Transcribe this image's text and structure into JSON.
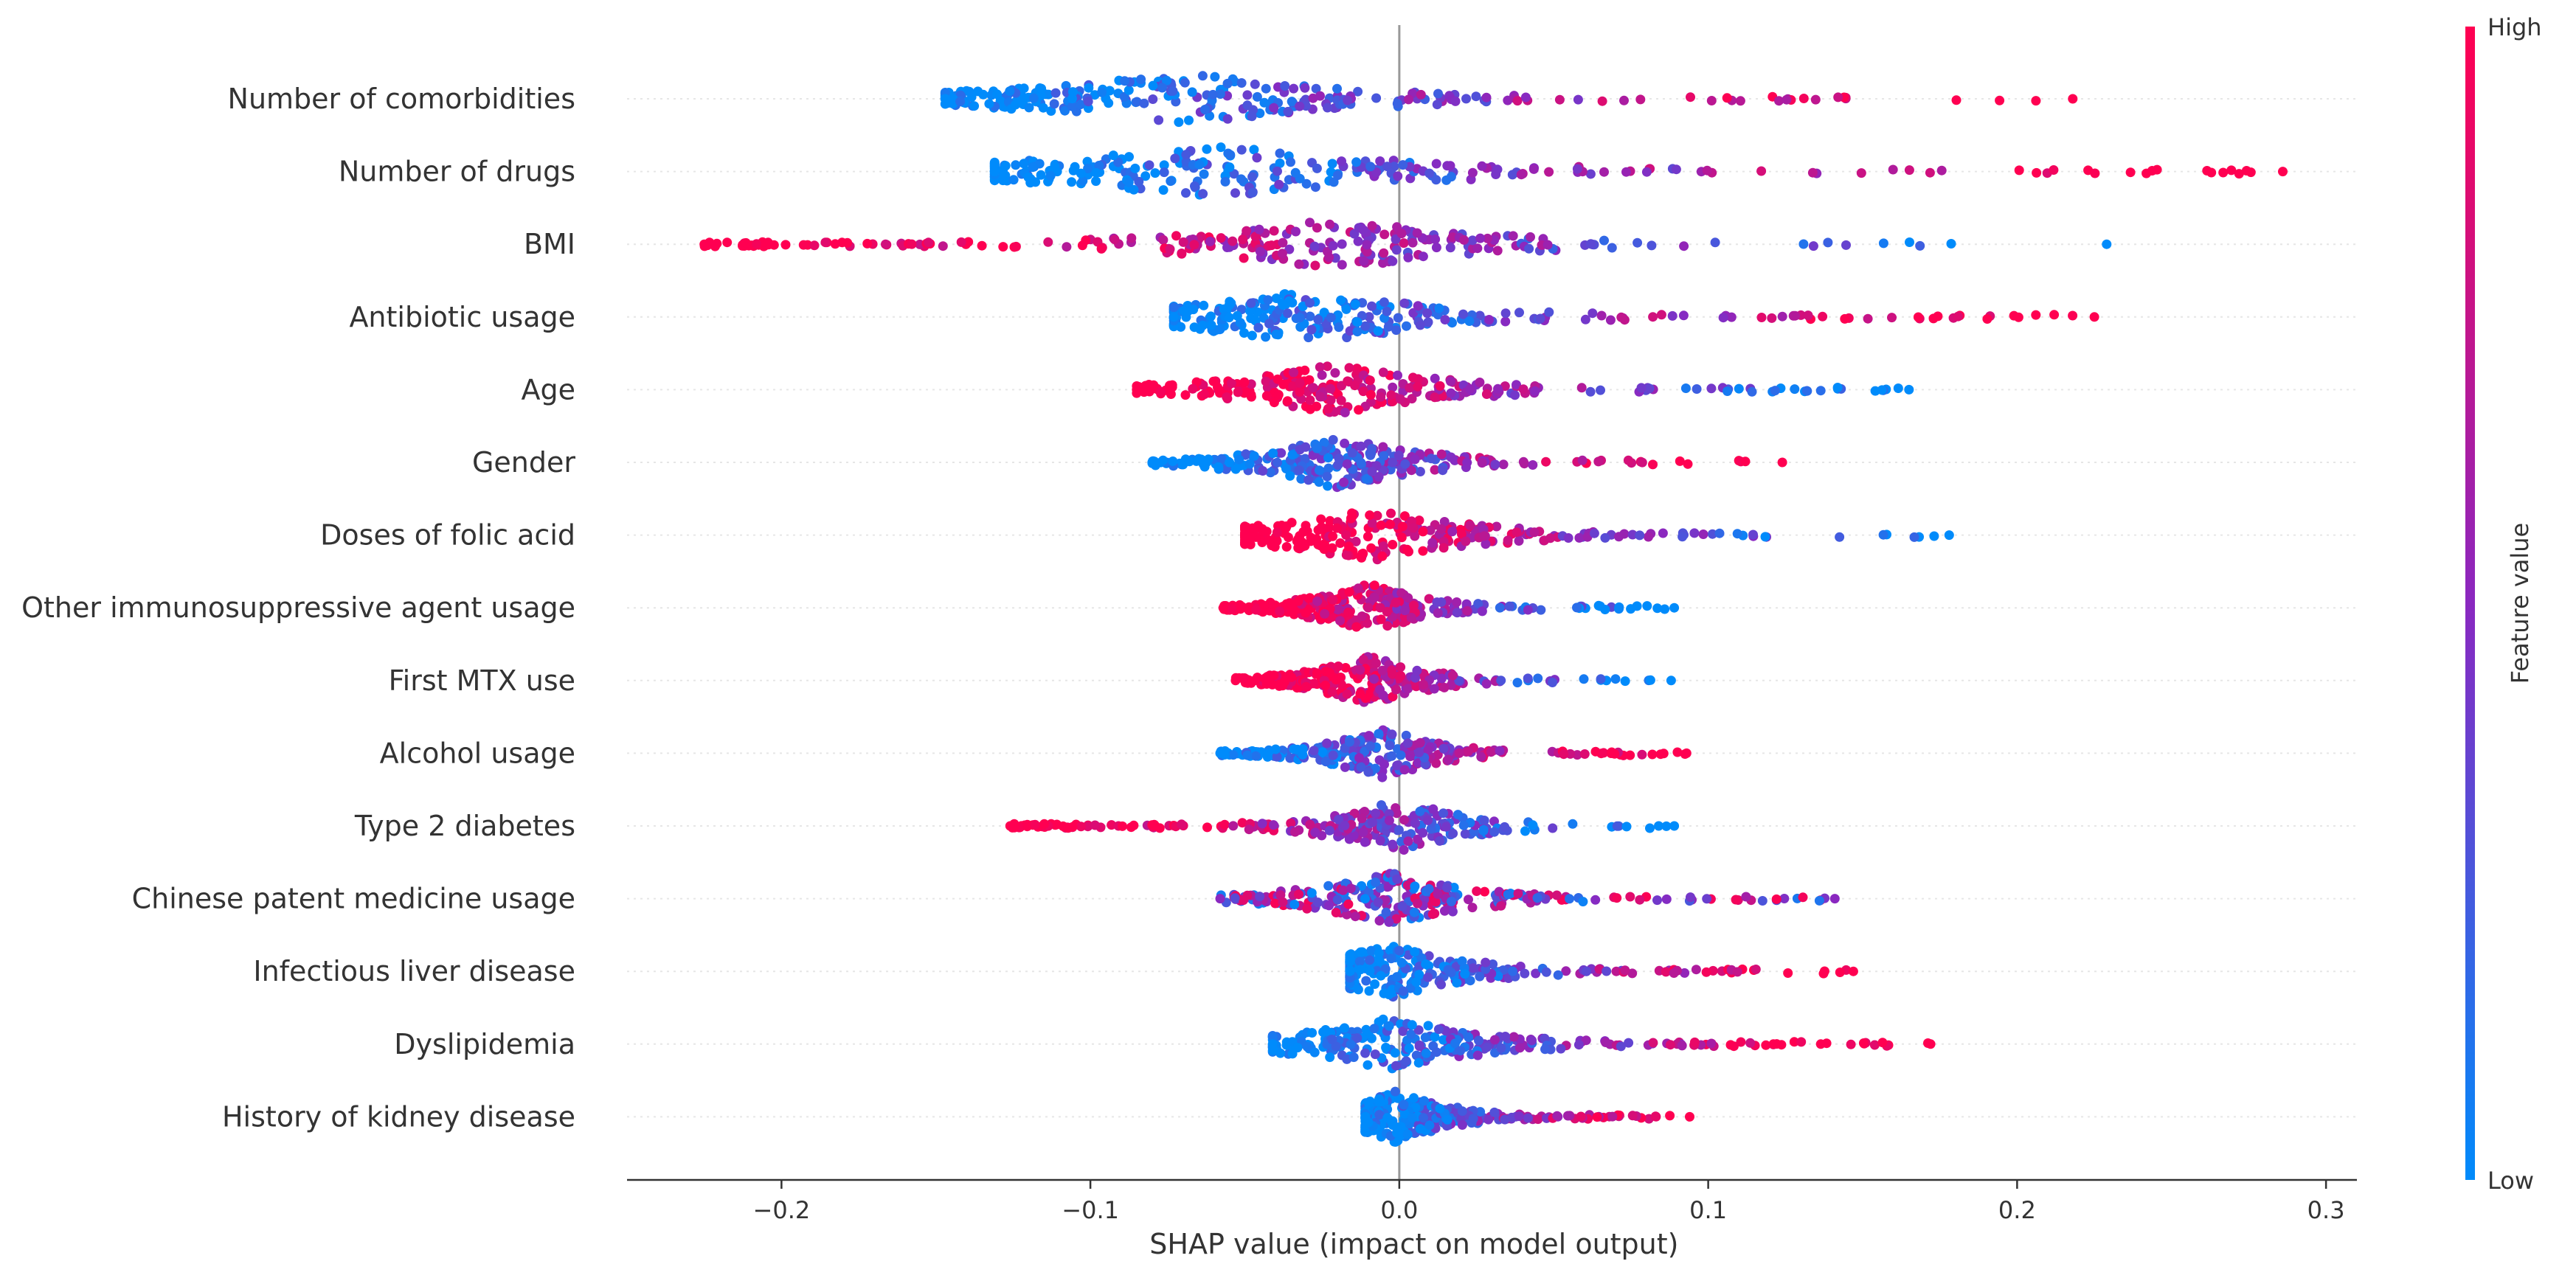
{
  "chart_data": {
    "type": "scatter",
    "subtype": "beeswarm",
    "xlabel": "SHAP value (impact on model output)",
    "xlim": [
      -0.25,
      0.31
    ],
    "xticks": [
      -0.2,
      -0.1,
      0.0,
      0.1,
      0.2,
      0.3
    ],
    "xtick_labels": [
      "−0.2",
      "−0.1",
      "0.0",
      "0.1",
      "0.2",
      "0.3"
    ],
    "features": [
      {
        "name": "Number of comorbidities",
        "shap_min": -0.147,
        "shap_max": 0.218,
        "low_side": "negative",
        "density_peak": -0.07
      },
      {
        "name": "Number of drugs",
        "shap_min": -0.131,
        "shap_max": 0.286,
        "low_side": "negative",
        "density_peak": -0.06
      },
      {
        "name": "BMI",
        "shap_min": -0.225,
        "shap_max": 0.229,
        "low_side": "positive",
        "density_peak": -0.02
      },
      {
        "name": "Antibiotic usage",
        "shap_min": -0.073,
        "shap_max": 0.225,
        "low_side": "negative",
        "density_peak": -0.03
      },
      {
        "name": "Age",
        "shap_min": -0.085,
        "shap_max": 0.165,
        "low_side": "positive",
        "density_peak": -0.02
      },
      {
        "name": "Gender ",
        "shap_min": -0.08,
        "shap_max": 0.124,
        "low_side": "negative",
        "density_peak": -0.02
      },
      {
        "name": "Doses of folic acid",
        "shap_min": -0.05,
        "shap_max": 0.178,
        "low_side": "positive",
        "density_peak": -0.01
      },
      {
        "name": "Other immunosuppressive agent usage",
        "shap_min": -0.057,
        "shap_max": 0.089,
        "low_side": "positive",
        "density_peak": -0.01
      },
      {
        "name": "First MTX use",
        "shap_min": -0.053,
        "shap_max": 0.088,
        "low_side": "positive",
        "density_peak": -0.01
      },
      {
        "name": "Alcohol usage",
        "shap_min": -0.058,
        "shap_max": 0.093,
        "low_side": "negative",
        "density_peak": -0.005
      },
      {
        "name": "Type 2 diabetes",
        "shap_min": -0.126,
        "shap_max": 0.089,
        "low_side": "positive",
        "density_peak": 0.0
      },
      {
        "name": "Chinese patent medicine usage",
        "shap_min": -0.058,
        "shap_max": 0.141,
        "low_side": "mixed",
        "density_peak": -0.003
      },
      {
        "name": "Infectious liver disease",
        "shap_min": -0.016,
        "shap_max": 0.147,
        "low_side": "negative",
        "density_peak": -0.003
      },
      {
        "name": "Dyslipidemia",
        "shap_min": -0.041,
        "shap_max": 0.172,
        "low_side": "negative",
        "density_peak": -0.003
      },
      {
        "name": "History of kidney disease",
        "shap_min": -0.011,
        "shap_max": 0.094,
        "low_side": "negative",
        "density_peak": -0.001
      }
    ],
    "colorbar": {
      "title": "Feature value",
      "high_label": "High",
      "low_label": "Low",
      "high_color": "#ff0051",
      "low_color": "#008bfb"
    },
    "grid": false,
    "zero_line": true
  },
  "colors": {
    "high": "#ff0051",
    "mid": "#8a28c0",
    "low": "#008bfb",
    "axis": "#333333",
    "zero_line": "#999999",
    "row_guide": "#e6e6e6"
  }
}
